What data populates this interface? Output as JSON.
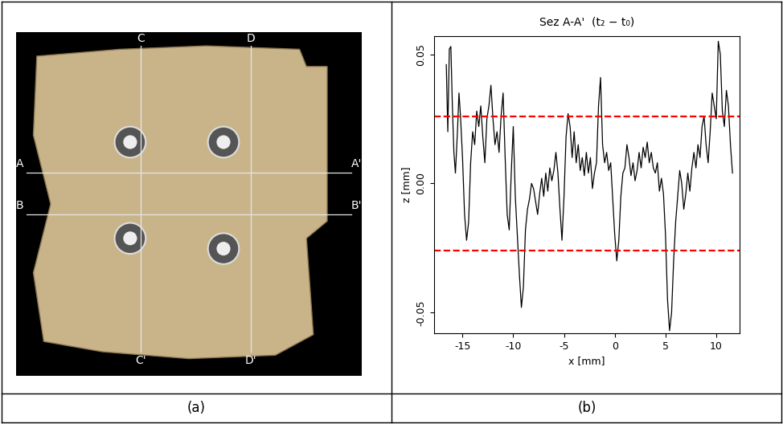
{
  "photo": {
    "caption": "(a)",
    "sections": [
      {
        "start": "A",
        "end": "A'",
        "direction": "horizontal"
      },
      {
        "start": "B",
        "end": "B'",
        "direction": "horizontal"
      },
      {
        "start": "C",
        "end": "C'",
        "direction": "vertical"
      },
      {
        "start": "D",
        "end": "D'",
        "direction": "vertical"
      }
    ]
  },
  "chart_data": {
    "type": "line",
    "caption": "(b)",
    "title": "Sez A-A'  (t₂ − t₀)",
    "x_label": "x [mm]",
    "y_label": "z [mm]",
    "x": [
      -16.6,
      -16.45,
      -16.3,
      -16.15,
      -16.0,
      -15.85,
      -15.7,
      -15.5,
      -15.35,
      -15.2,
      -15.0,
      -14.8,
      -14.6,
      -14.4,
      -14.2,
      -14.0,
      -13.8,
      -13.6,
      -13.4,
      -13.2,
      -13.0,
      -12.8,
      -12.6,
      -12.4,
      -12.2,
      -12.0,
      -11.8,
      -11.6,
      -11.4,
      -11.2,
      -11.0,
      -10.8,
      -10.6,
      -10.4,
      -10.2,
      -10.0,
      -9.8,
      -9.6,
      -9.4,
      -9.2,
      -9.0,
      -8.8,
      -8.6,
      -8.4,
      -8.2,
      -8.0,
      -7.8,
      -7.6,
      -7.4,
      -7.2,
      -7.0,
      -6.8,
      -6.6,
      -6.4,
      -6.2,
      -6.0,
      -5.8,
      -5.6,
      -5.4,
      -5.2,
      -5.0,
      -4.8,
      -4.6,
      -4.4,
      -4.2,
      -4.0,
      -3.8,
      -3.6,
      -3.4,
      -3.2,
      -3.0,
      -2.8,
      -2.6,
      -2.4,
      -2.2,
      -2.0,
      -1.8,
      -1.6,
      -1.4,
      -1.2,
      -1.0,
      -0.8,
      -0.6,
      -0.4,
      -0.2,
      0.0,
      0.2,
      0.4,
      0.6,
      0.8,
      1.0,
      1.2,
      1.4,
      1.6,
      1.8,
      2.0,
      2.2,
      2.4,
      2.6,
      2.8,
      3.0,
      3.2,
      3.4,
      3.6,
      3.8,
      4.0,
      4.2,
      4.4,
      4.6,
      4.8,
      5.0,
      5.2,
      5.4,
      5.6,
      5.8,
      6.0,
      6.2,
      6.4,
      6.6,
      6.8,
      7.0,
      7.2,
      7.4,
      7.6,
      7.8,
      8.0,
      8.2,
      8.4,
      8.6,
      8.8,
      9.0,
      9.2,
      9.4,
      9.6,
      9.8,
      10.0,
      10.2,
      10.4,
      10.6,
      10.8,
      11.0,
      11.2,
      11.4,
      11.6
    ],
    "values": [
      0.046,
      0.02,
      0.052,
      0.053,
      0.03,
      0.012,
      0.004,
      0.02,
      0.035,
      0.026,
      0.01,
      -0.012,
      -0.022,
      -0.015,
      0.008,
      0.02,
      0.015,
      0.028,
      0.022,
      0.03,
      0.018,
      0.008,
      0.025,
      0.03,
      0.038,
      0.025,
      0.015,
      0.02,
      0.012,
      0.026,
      0.035,
      0.01,
      -0.012,
      -0.018,
      0.004,
      0.022,
      -0.005,
      -0.02,
      -0.035,
      -0.048,
      -0.04,
      -0.018,
      -0.01,
      -0.006,
      0.0,
      -0.002,
      -0.007,
      -0.012,
      -0.004,
      0.002,
      -0.005,
      0.004,
      -0.003,
      0.006,
      0.001,
      0.005,
      0.012,
      0.004,
      -0.01,
      -0.022,
      -0.005,
      0.018,
      0.027,
      0.022,
      0.01,
      0.02,
      0.008,
      0.015,
      0.005,
      0.01,
      0.003,
      0.012,
      0.004,
      0.01,
      -0.002,
      0.004,
      0.008,
      0.03,
      0.041,
      0.015,
      0.008,
      0.012,
      0.005,
      0.008,
      -0.006,
      -0.02,
      -0.03,
      -0.022,
      -0.005,
      0.004,
      0.006,
      0.015,
      0.01,
      0.003,
      0.008,
      0.001,
      0.005,
      0.012,
      0.006,
      0.014,
      0.01,
      0.016,
      0.008,
      0.012,
      0.006,
      0.004,
      0.008,
      -0.003,
      0.002,
      -0.004,
      -0.02,
      -0.045,
      -0.057,
      -0.05,
      -0.03,
      -0.015,
      -0.005,
      0.005,
      0.0,
      -0.01,
      -0.004,
      0.004,
      -0.003,
      0.006,
      0.012,
      0.006,
      0.015,
      0.01,
      0.022,
      0.026,
      0.015,
      0.008,
      0.02,
      0.035,
      0.03,
      0.025,
      0.055,
      0.05,
      0.028,
      0.022,
      0.036,
      0.03,
      0.015,
      0.004
    ],
    "color": "#000000",
    "reference_lines": [
      {
        "value": 0.026,
        "color": "#ff0000",
        "line_style": "dashed"
      },
      {
        "value": -0.026,
        "color": "#ff0000",
        "line_style": "dashed"
      }
    ],
    "xlim": [
      -17.8,
      12.3
    ],
    "xticks": [
      -15,
      -10,
      -5,
      0,
      5,
      10
    ],
    "ylim": [
      -0.058,
      0.057
    ],
    "yticks": [
      -0.05,
      {
        "value": 0,
        "label": "0.00"
      },
      0.05
    ],
    "grid": false
  }
}
